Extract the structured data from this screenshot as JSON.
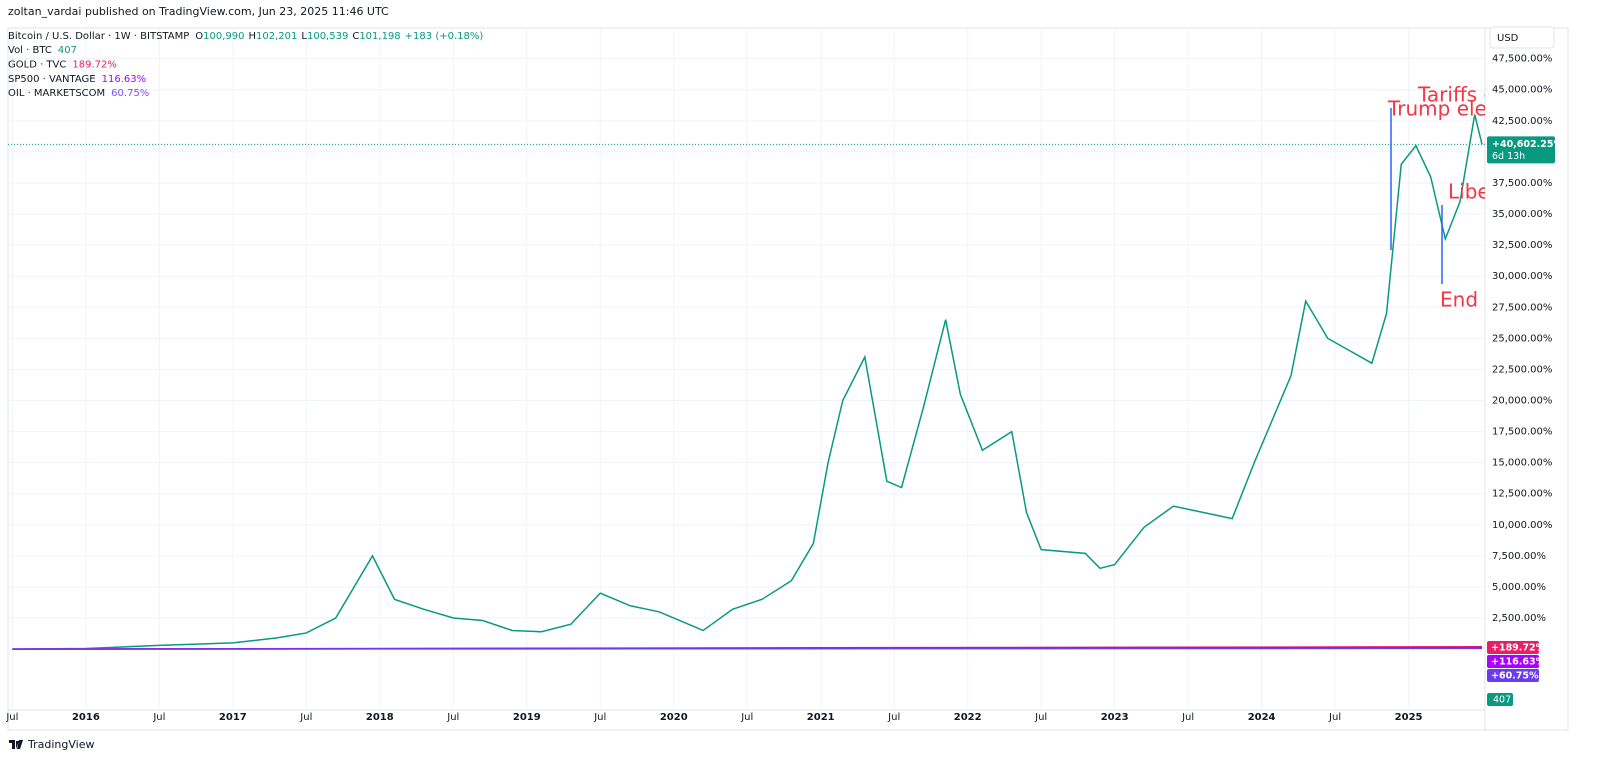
{
  "header": {
    "publisher": "zoltan_vardai published on TradingView.com, Jun 23, 2025 11:46 UTC",
    "brand": "TradingView"
  },
  "legend": {
    "symbol": "Bitcoin / U.S. Dollar · 1W · BITSTAMP",
    "ohlc": [
      {
        "label": "O",
        "value": "100,990"
      },
      {
        "label": "H",
        "value": "102,201"
      },
      {
        "label": "L",
        "value": "100,539"
      },
      {
        "label": "C",
        "value": "101,198"
      }
    ],
    "change": "+183 (+0.18%)",
    "indicators": [
      {
        "name": "Vol · BTC",
        "value": "407",
        "color": "#089981"
      },
      {
        "name": "GOLD · TVC",
        "value": "189.72%",
        "color": "#e91e63"
      },
      {
        "name": "SP500 · VANTAGE",
        "value": "116.63%",
        "color": "#aa00ff"
      },
      {
        "name": "OIL · MARKETSCOM",
        "value": "60.75%",
        "color": "#7c4dff"
      }
    ]
  },
  "currency": "USD",
  "annotations": [
    "Tariffs -",
    "Trump elec",
    "Libe",
    "End o"
  ],
  "chart_data": {
    "type": "line",
    "grid": true,
    "x": [
      2015.5,
      2016,
      2016.5,
      2017,
      2017.3,
      2017.5,
      2017.7,
      2017.95,
      2018.1,
      2018.3,
      2018.5,
      2018.7,
      2018.9,
      2019.1,
      2019.3,
      2019.5,
      2019.7,
      2019.9,
      2020.2,
      2020.4,
      2020.6,
      2020.8,
      2020.95,
      2021.05,
      2021.15,
      2021.3,
      2021.45,
      2021.55,
      2021.7,
      2021.85,
      2021.95,
      2022.1,
      2022.3,
      2022.4,
      2022.5,
      2022.8,
      2022.9,
      2023.0,
      2023.2,
      2023.4,
      2023.6,
      2023.8,
      2023.95,
      2024.2,
      2024.3,
      2024.45,
      2024.6,
      2024.75,
      2024.85,
      2024.95,
      2025.05,
      2025.15,
      2025.25,
      2025.35,
      2025.45,
      2025.5
    ],
    "series": [
      {
        "color": "#089981",
        "values": [
          0,
          50,
          300,
          500,
          900,
          1300,
          2500,
          7500,
          4000,
          3200,
          2500,
          2300,
          1500,
          1400,
          2000,
          4500,
          3500,
          3000,
          1500,
          3200,
          4000,
          5500,
          8500,
          15000,
          20000,
          23500,
          13500,
          13000,
          19500,
          26500,
          20500,
          16000,
          17500,
          11000,
          8000,
          7700,
          6500,
          6800,
          9800,
          11500,
          11000,
          10500,
          15000,
          22000,
          28000,
          25000,
          24000,
          23000,
          27000,
          39000,
          40500,
          38000,
          33000,
          36000,
          43000,
          40600
        ]
      }
    ],
    "overlays": [
      {
        "color": "#e91e63",
        "x": [
          2015.5,
          2025.5
        ],
        "values": [
          0,
          189.72
        ],
        "value_label": "+189.72%"
      },
      {
        "color": "#aa00ff",
        "x": [
          2015.5,
          2025.5
        ],
        "values": [
          0,
          116.63
        ],
        "value_label": "+116.63%"
      },
      {
        "color": "#6a3cf0",
        "x": [
          2015.5,
          2025.5
        ],
        "values": [
          0,
          60.75
        ],
        "value_label": "+60.75%"
      }
    ],
    "last": {
      "value": 40602.25,
      "label": "+40,602.25%",
      "countdown": "6d 13h"
    },
    "xlim": [
      2015.47,
      2025.52
    ],
    "ylim": [
      -4900,
      48600
    ],
    "xticks": [
      {
        "value": 2015.5,
        "label": "Jul"
      },
      2016,
      {
        "value": 2016.5,
        "label": "Jul"
      },
      2017,
      {
        "value": 2017.5,
        "label": "Jul"
      },
      2018,
      {
        "value": 2018.5,
        "label": "Jul"
      },
      2019,
      {
        "value": 2019.5,
        "label": "Jul"
      },
      2020,
      {
        "value": 2020.5,
        "label": "Jul"
      },
      2021,
      {
        "value": 2021.5,
        "label": "Jul"
      },
      2022,
      {
        "value": 2022.5,
        "label": "Jul"
      },
      2023,
      {
        "value": 2023.5,
        "label": "Jul"
      },
      2024,
      {
        "value": 2024.5,
        "label": "Jul"
      },
      2025
    ],
    "yticks": [
      {
        "value": 2500,
        "label": "2,500.00%"
      },
      {
        "value": 5000,
        "label": "5,000.00%"
      },
      {
        "value": 7500,
        "label": "7,500.00%"
      },
      {
        "value": 10000,
        "label": "10,000.00%"
      },
      {
        "value": 12500,
        "label": "12,500.00%"
      },
      {
        "value": 15000,
        "label": "15,000.00%"
      },
      {
        "value": 17500,
        "label": "17,500.00%"
      },
      {
        "value": 20000,
        "label": "20,000.00%"
      },
      {
        "value": 22500,
        "label": "22,500.00%"
      },
      {
        "value": 25000,
        "label": "25,000.00%"
      },
      {
        "value": 27500,
        "label": "27,500.00%"
      },
      {
        "value": 30000,
        "label": "30,000.00%"
      },
      {
        "value": 32500,
        "label": "32,500.00%"
      },
      {
        "value": 35000,
        "label": "35,000.00%"
      },
      {
        "value": 37500,
        "label": "37,500.00%"
      },
      {
        "value": 40000,
        "label": "40,000.00%"
      },
      {
        "value": 42500,
        "label": "42,500.00%"
      },
      {
        "value": 45000,
        "label": "45,000.00%"
      },
      {
        "value": 47500,
        "label": "47,500.00%"
      }
    ]
  }
}
